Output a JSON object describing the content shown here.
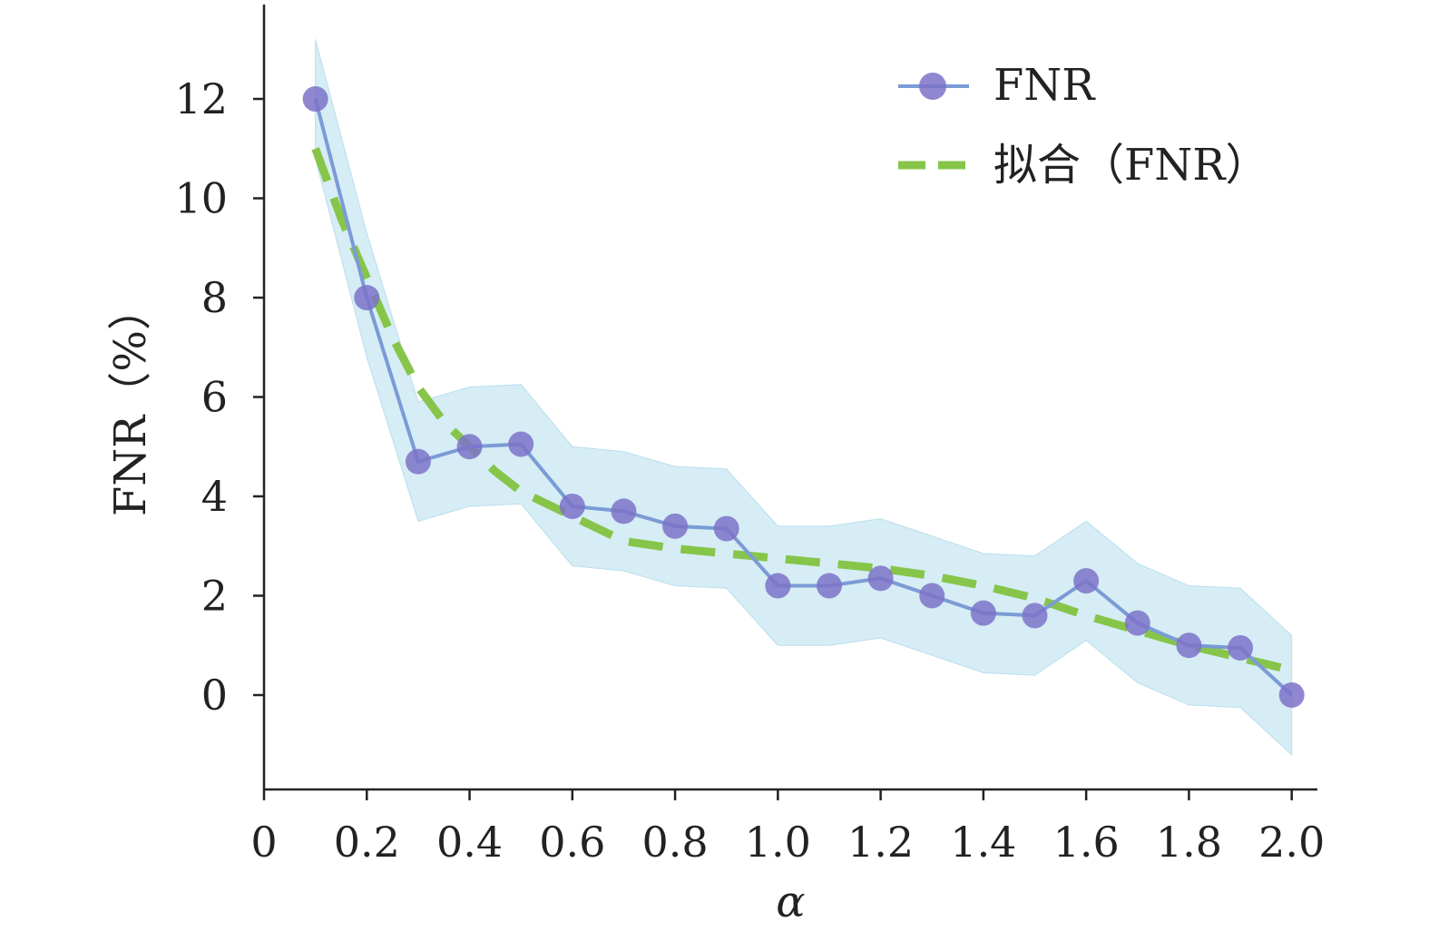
{
  "chart_data": {
    "type": "line",
    "xlabel": "α",
    "ylabel": "FNR（%）",
    "xlim": [
      0,
      2.05
    ],
    "ylim": [
      -1.9,
      13.9
    ],
    "x_ticks": [
      0,
      0.2,
      0.4,
      0.6,
      0.8,
      1.0,
      1.2,
      1.4,
      1.6,
      1.8,
      2.0
    ],
    "x_tick_labels": [
      "0",
      "0.2",
      "0.4",
      "0.6",
      "0.8",
      "1.0",
      "1.2",
      "1.4",
      "1.6",
      "1.8",
      "2.0"
    ],
    "y_ticks": [
      0,
      2,
      4,
      6,
      8,
      10,
      12
    ],
    "y_tick_labels": [
      "0",
      "2",
      "4",
      "6",
      "8",
      "10",
      "12"
    ],
    "grid": false,
    "legend_position": "top-right",
    "x": [
      0.1,
      0.2,
      0.3,
      0.4,
      0.5,
      0.6,
      0.7,
      0.8,
      0.9,
      1.0,
      1.1,
      1.2,
      1.3,
      1.4,
      1.5,
      1.6,
      1.7,
      1.8,
      1.9,
      2.0
    ],
    "series": [
      {
        "name": "FNR",
        "style": "line-marker",
        "color": "#7b9bd6",
        "marker_color": "#7d72c8",
        "values": [
          12.0,
          8.0,
          4.7,
          5.0,
          5.05,
          3.8,
          3.7,
          3.4,
          3.35,
          2.2,
          2.2,
          2.35,
          2.0,
          1.65,
          1.6,
          2.3,
          1.45,
          1.0,
          0.95,
          0.0
        ],
        "band_upper": [
          13.2,
          9.3,
          5.9,
          6.2,
          6.25,
          5.0,
          4.9,
          4.6,
          4.55,
          3.4,
          3.4,
          3.55,
          3.2,
          2.85,
          2.8,
          3.5,
          2.65,
          2.2,
          2.15,
          1.2
        ],
        "band_lower": [
          10.8,
          6.8,
          3.5,
          3.8,
          3.85,
          2.6,
          2.5,
          2.2,
          2.15,
          1.0,
          1.0,
          1.15,
          0.8,
          0.45,
          0.4,
          1.1,
          0.25,
          -0.2,
          -0.25,
          -1.2
        ],
        "band_color": "#cfeaf3"
      },
      {
        "name": "拟合（FNR）",
        "style": "dashed",
        "color": "#86c54a",
        "x": [
          0.1,
          0.15,
          0.2,
          0.25,
          0.3,
          0.35,
          0.4,
          0.45,
          0.5,
          0.55,
          0.6,
          0.7,
          0.8,
          0.9,
          1.0,
          1.1,
          1.2,
          1.3,
          1.4,
          1.5,
          1.6,
          1.7,
          1.8,
          1.9,
          2.0
        ],
        "values": [
          11.0,
          9.6,
          8.4,
          7.2,
          6.2,
          5.5,
          5.0,
          4.5,
          4.1,
          3.85,
          3.6,
          3.1,
          2.95,
          2.85,
          2.75,
          2.65,
          2.55,
          2.4,
          2.2,
          1.95,
          1.6,
          1.3,
          1.0,
          0.75,
          0.5
        ]
      }
    ]
  }
}
